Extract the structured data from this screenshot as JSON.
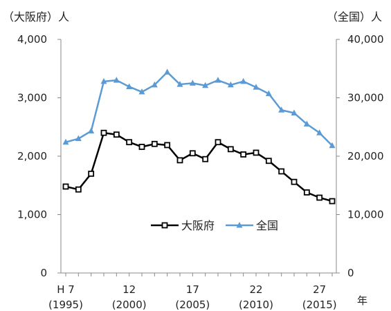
{
  "chart_data": {
    "type": "line",
    "left_axis_unit": "（大阪府）人",
    "right_axis_unit": "（全国）人",
    "x_unit": "年",
    "left_ylim": [
      0,
      4000
    ],
    "right_ylim": [
      0,
      40000
    ],
    "left_ticks": [
      "0",
      "1,000",
      "2,000",
      "3,000",
      "4,000"
    ],
    "right_ticks": [
      "0",
      "10,000",
      "20,000",
      "30,000",
      "40,000"
    ],
    "x_tick_labels": [
      {
        "line1": "H 7",
        "line2": "(1995)"
      },
      {
        "line1": "12",
        "line2": "(2000)"
      },
      {
        "line1": "17",
        "line2": "(2005)"
      },
      {
        "line1": "22",
        "line2": "(2010)"
      },
      {
        "line1": "27",
        "line2": "(2015)"
      }
    ],
    "x_label_years": [
      1995,
      2000,
      2005,
      2010,
      2015
    ],
    "x": [
      1995,
      1996,
      1997,
      1998,
      1999,
      2000,
      2001,
      2002,
      2003,
      2004,
      2005,
      2006,
      2007,
      2008,
      2009,
      2010,
      2011,
      2012,
      2013,
      2014,
      2015,
      2016
    ],
    "x_range": [
      1995,
      2016
    ],
    "grid": false,
    "legend_position": "center-right",
    "series": [
      {
        "name": "大阪府",
        "axis": "left",
        "color": "#000000",
        "marker": "open-square",
        "values": [
          1480,
          1430,
          1700,
          2400,
          2370,
          2240,
          2160,
          2210,
          2190,
          1930,
          2050,
          1950,
          2240,
          2120,
          2030,
          2060,
          1920,
          1740,
          1560,
          1380,
          1290,
          1230
        ]
      },
      {
        "name": "全国",
        "axis": "right",
        "color": "#5b9bd5",
        "marker": "filled-triangle",
        "values": [
          22400,
          23000,
          24300,
          32800,
          33000,
          31900,
          31000,
          32200,
          34400,
          32300,
          32500,
          32100,
          33000,
          32200,
          32800,
          31800,
          30700,
          27900,
          27400,
          25500,
          24000,
          21800
        ]
      }
    ]
  }
}
